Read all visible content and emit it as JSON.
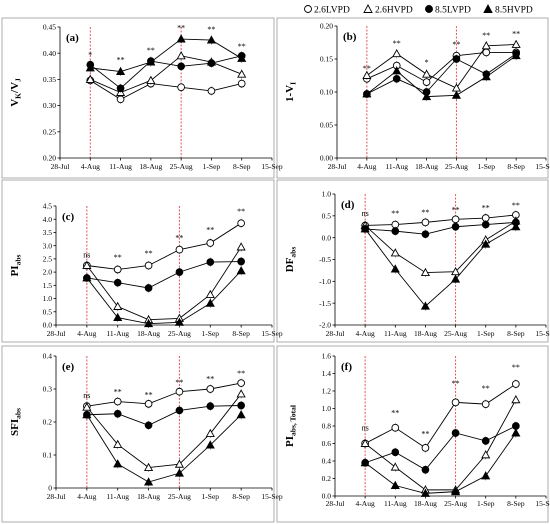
{
  "legend": [
    {
      "name": "2.6LVPD",
      "marker": "open-circle"
    },
    {
      "name": "2.6HVPD",
      "marker": "open-triangle"
    },
    {
      "name": "8.5LVPD",
      "marker": "filled-circle"
    },
    {
      "name": "8.5HVPD",
      "marker": "filled-triangle"
    }
  ],
  "x_tick_labels": [
    "28-Jul",
    "4-Aug",
    "11-Aug",
    "18-Aug",
    "25-Aug",
    "1-Sep",
    "8-Sep",
    "15-Sep"
  ],
  "colors": {
    "axis": "#000000",
    "frame": "#9a9a9a",
    "vline": "#e8525a"
  },
  "chart_data": [
    {
      "type": "line",
      "panel": "(a)",
      "ylabel": "VK / VJ",
      "ylabel_main": "V",
      "ylabel_sub1": "K",
      "ylabel_mid": "/V",
      "ylabel_sub2": "J",
      "ylim": [
        0.2,
        0.45
      ],
      "yticks": [
        "0.20",
        "0.25",
        "0.30",
        "0.35",
        "0.40",
        "0.45"
      ],
      "x": [
        1,
        2,
        3,
        4,
        5,
        6
      ],
      "series": [
        {
          "name": "2.6LVPD",
          "values": [
            0.348,
            0.312,
            0.342,
            0.335,
            0.328,
            0.342
          ]
        },
        {
          "name": "2.6HVPD",
          "values": [
            0.35,
            0.325,
            0.348,
            0.395,
            0.383,
            0.36
          ]
        },
        {
          "name": "8.5LVPD",
          "values": [
            0.378,
            0.333,
            0.385,
            0.375,
            0.381,
            0.395
          ]
        },
        {
          "name": "8.5HVPD",
          "values": [
            0.372,
            0.365,
            0.383,
            0.427,
            0.425,
            0.39
          ]
        }
      ],
      "annotations": [
        {
          "x": 1,
          "y": 0.392,
          "text": "*"
        },
        {
          "x": 2,
          "y": 0.382,
          "text": "**"
        },
        {
          "x": 3,
          "y": 0.4,
          "text": "**"
        },
        {
          "x": 4,
          "y": 0.443,
          "text": "**"
        },
        {
          "x": 5,
          "y": 0.44,
          "text": "**"
        },
        {
          "x": 6,
          "y": 0.408,
          "text": "**"
        }
      ]
    },
    {
      "type": "line",
      "panel": "(b)",
      "ylabel": "1-VI",
      "ylabel_main": "1-V",
      "ylabel_sub1": "I",
      "ylabel_mid": "",
      "ylabel_sub2": "",
      "ylim": [
        0,
        0.2
      ],
      "yticks": [
        "0.00",
        "0.05",
        "0.10",
        "0.15",
        "0.20"
      ],
      "x": [
        1,
        2,
        3,
        4,
        5,
        6
      ],
      "series": [
        {
          "name": "2.6LVPD",
          "values": [
            0.12,
            0.14,
            0.115,
            0.155,
            0.16,
            0.16
          ]
        },
        {
          "name": "2.6HVPD",
          "values": [
            0.125,
            0.158,
            0.127,
            0.106,
            0.17,
            0.172
          ]
        },
        {
          "name": "8.5LVPD",
          "values": [
            0.097,
            0.12,
            0.1,
            0.15,
            0.127,
            0.158
          ]
        },
        {
          "name": "8.5HVPD",
          "values": [
            0.097,
            0.132,
            0.093,
            0.095,
            0.123,
            0.155
          ]
        }
      ],
      "annotations": [
        {
          "x": 1,
          "y": 0.132,
          "text": "**"
        },
        {
          "x": 2,
          "y": 0.17,
          "text": "**"
        },
        {
          "x": 3,
          "y": 0.141,
          "text": "*"
        },
        {
          "x": 4,
          "y": 0.168,
          "text": "**"
        },
        {
          "x": 5,
          "y": 0.182,
          "text": "**"
        },
        {
          "x": 6,
          "y": 0.184,
          "text": "**"
        }
      ]
    },
    {
      "type": "line",
      "panel": "(c)",
      "ylabel": "PI abs",
      "ylabel_main": "PI",
      "ylabel_sub1": "abs",
      "ylabel_mid": "",
      "ylabel_sub2": "",
      "ylim": [
        0,
        4.5
      ],
      "yticks": [
        "0.0",
        "0.5",
        "1.0",
        "1.5",
        "2.0",
        "2.5",
        "3.0",
        "3.5",
        "4.0",
        "4.5"
      ],
      "x": [
        1,
        2,
        3,
        4,
        5,
        6
      ],
      "series": [
        {
          "name": "2.6LVPD",
          "values": [
            2.25,
            2.1,
            2.25,
            2.85,
            3.1,
            3.85
          ]
        },
        {
          "name": "2.6HVPD",
          "values": [
            2.25,
            0.7,
            0.2,
            0.25,
            1.15,
            2.95
          ]
        },
        {
          "name": "8.5LVPD",
          "values": [
            1.78,
            1.6,
            1.4,
            2.0,
            2.38,
            2.4
          ]
        },
        {
          "name": "8.5HVPD",
          "values": [
            1.78,
            0.28,
            0.05,
            0.1,
            0.82,
            2.05
          ]
        }
      ],
      "annotations": [
        {
          "x": 1,
          "y": 2.55,
          "text": "ns"
        },
        {
          "x": 2,
          "y": 2.45,
          "text": "**"
        },
        {
          "x": 3,
          "y": 2.6,
          "text": "**"
        },
        {
          "x": 4,
          "y": 3.2,
          "text": "**"
        },
        {
          "x": 5,
          "y": 3.5,
          "text": "**"
        },
        {
          "x": 6,
          "y": 4.2,
          "text": "**"
        }
      ]
    },
    {
      "type": "line",
      "panel": "(d)",
      "ylabel": "DF abs",
      "ylabel_main": "DF",
      "ylabel_sub1": "abs",
      "ylabel_mid": "",
      "ylabel_sub2": "",
      "ylim": [
        -2,
        1
      ],
      "yticks": [
        "-2.0",
        "-1.5",
        "-1.0",
        "-0.5",
        "0.0",
        "0.5",
        "1.0"
      ],
      "x": [
        1,
        2,
        3,
        4,
        5,
        6
      ],
      "series": [
        {
          "name": "2.6LVPD",
          "values": [
            0.28,
            0.3,
            0.35,
            0.42,
            0.45,
            0.52
          ]
        },
        {
          "name": "2.6HVPD",
          "values": [
            0.28,
            -0.35,
            -0.8,
            -0.78,
            -0.05,
            0.38
          ]
        },
        {
          "name": "8.5LVPD",
          "values": [
            0.2,
            0.15,
            0.08,
            0.25,
            0.3,
            0.35
          ]
        },
        {
          "name": "8.5HVPD",
          "values": [
            0.2,
            -0.72,
            -1.57,
            -0.95,
            -0.15,
            0.25
          ]
        }
      ],
      "annotations": [
        {
          "x": 1,
          "y": 0.5,
          "text": "ns"
        },
        {
          "x": 2,
          "y": 0.5,
          "text": "**"
        },
        {
          "x": 3,
          "y": 0.52,
          "text": "**"
        },
        {
          "x": 4,
          "y": 0.58,
          "text": "**"
        },
        {
          "x": 5,
          "y": 0.62,
          "text": "**"
        },
        {
          "x": 6,
          "y": 0.68,
          "text": "**"
        }
      ]
    },
    {
      "type": "line",
      "panel": "(e)",
      "ylabel": "SFI abs",
      "ylabel_main": "SFI",
      "ylabel_sub1": "abs",
      "ylabel_mid": "",
      "ylabel_sub2": "",
      "ylim": [
        0,
        0.4
      ],
      "yticks": [
        "0",
        "0.1",
        "0.2",
        "0.3",
        "0.4"
      ],
      "x": [
        1,
        2,
        3,
        4,
        5,
        6
      ],
      "series": [
        {
          "name": "2.6LVPD",
          "values": [
            0.248,
            0.262,
            0.255,
            0.292,
            0.3,
            0.318
          ]
        },
        {
          "name": "2.6HVPD",
          "values": [
            0.245,
            0.132,
            0.062,
            0.072,
            0.165,
            0.285
          ]
        },
        {
          "name": "8.5LVPD",
          "values": [
            0.222,
            0.225,
            0.19,
            0.235,
            0.248,
            0.25
          ]
        },
        {
          "name": "8.5HVPD",
          "values": [
            0.222,
            0.073,
            0.018,
            0.045,
            0.13,
            0.222
          ]
        }
      ],
      "annotations": [
        {
          "x": 1,
          "y": 0.272,
          "text": "ns"
        },
        {
          "x": 2,
          "y": 0.283,
          "text": "**"
        },
        {
          "x": 3,
          "y": 0.275,
          "text": "**"
        },
        {
          "x": 4,
          "y": 0.312,
          "text": "**"
        },
        {
          "x": 5,
          "y": 0.322,
          "text": "**"
        },
        {
          "x": 6,
          "y": 0.34,
          "text": "**"
        }
      ]
    },
    {
      "type": "line",
      "panel": "(f)",
      "ylabel": "PI abs,Total",
      "ylabel_main": "PI",
      "ylabel_sub1": "abs, Total",
      "ylabel_mid": "",
      "ylabel_sub2": "",
      "ylim": [
        0,
        1.6
      ],
      "yticks": [
        "0.0",
        "0.2",
        "0.4",
        "0.6",
        "0.8",
        "1.0",
        "1.2",
        "1.4",
        "1.6"
      ],
      "x": [
        1,
        2,
        3,
        4,
        5,
        6
      ],
      "series": [
        {
          "name": "2.6LVPD",
          "values": [
            0.6,
            0.78,
            0.55,
            1.07,
            1.05,
            1.28
          ]
        },
        {
          "name": "2.6HVPD",
          "values": [
            0.6,
            0.33,
            0.07,
            0.07,
            0.47,
            1.1
          ]
        },
        {
          "name": "8.5LVPD",
          "values": [
            0.38,
            0.5,
            0.3,
            0.72,
            0.63,
            0.8
          ]
        },
        {
          "name": "8.5HVPD",
          "values": [
            0.38,
            0.12,
            0.03,
            0.05,
            0.23,
            0.72
          ]
        }
      ],
      "annotations": [
        {
          "x": 1,
          "y": 0.75,
          "text": "ns"
        },
        {
          "x": 2,
          "y": 0.92,
          "text": "**"
        },
        {
          "x": 3,
          "y": 0.68,
          "text": "**"
        },
        {
          "x": 4,
          "y": 1.26,
          "text": "**"
        },
        {
          "x": 5,
          "y": 1.2,
          "text": "**"
        },
        {
          "x": 6,
          "y": 1.44,
          "text": "**"
        }
      ]
    }
  ]
}
